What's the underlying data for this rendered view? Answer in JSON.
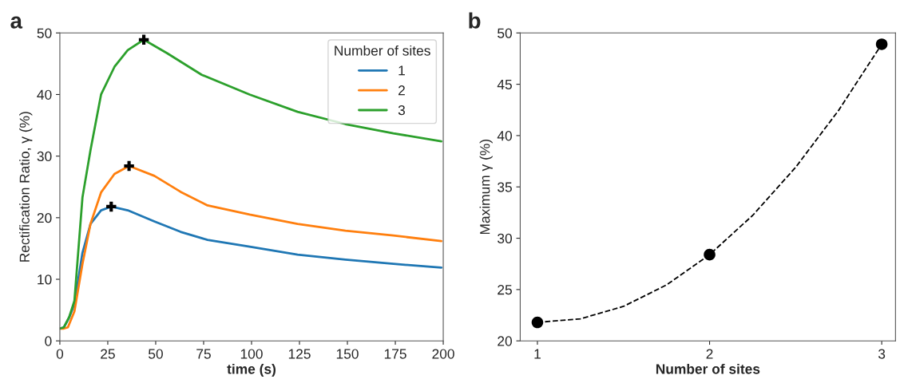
{
  "chart_data": [
    {
      "type": "line",
      "title": "a",
      "xlabel": "time (s)",
      "ylabel": "Rectification Ratio, γ (%)",
      "legend_title": "Number of sites",
      "legend": "top right",
      "xlim": [
        0,
        200
      ],
      "ylim": [
        0,
        50
      ],
      "xticks": [
        0,
        25,
        50,
        75,
        100,
        125,
        150,
        175,
        200
      ],
      "yticks": [
        0,
        10,
        20,
        30,
        40,
        50
      ],
      "grid": false,
      "series": [
        {
          "name": "1",
          "color": "#1f77b4",
          "x": [
            0,
            2.1,
            4.9,
            7.6,
            11.8,
            16,
            21.5,
            26.8,
            35.4,
            49.3,
            63,
            77,
            99,
            124,
            149,
            174,
            199
          ],
          "values": [
            2,
            2.2,
            3.8,
            6,
            14.3,
            19,
            21.2,
            21.8,
            21.2,
            19.4,
            17.7,
            16.4,
            15.3,
            14,
            13.2,
            12.5,
            11.9
          ]
        },
        {
          "name": "2",
          "color": "#ff7f0e",
          "x": [
            0,
            2.1,
            4.2,
            7.6,
            11.8,
            16,
            21.5,
            28.5,
            36.1,
            49.3,
            63,
            77,
            99,
            124,
            149,
            174,
            199
          ],
          "values": [
            2,
            2,
            2.2,
            4.8,
            12.5,
            19,
            24.1,
            27.1,
            28.4,
            26.8,
            24.2,
            22,
            20.5,
            19,
            17.9,
            17.1,
            16.2
          ]
        },
        {
          "name": "3",
          "color": "#2ca02c",
          "x": [
            0,
            2.1,
            4.9,
            7.6,
            11.8,
            16,
            21.5,
            28.5,
            35.4,
            43.8,
            56,
            74,
            99,
            124,
            149,
            174,
            199
          ],
          "values": [
            2,
            2.2,
            3.9,
            6.5,
            23.3,
            31,
            40,
            44.5,
            47.2,
            48.9,
            46.7,
            43.2,
            40,
            37.2,
            35.2,
            33.7,
            32.4
          ]
        },
        {
          "type": "scatter",
          "marker": "cross",
          "color": "#000000",
          "x": [
            26.8,
            36.1,
            43.8
          ],
          "values": [
            21.8,
            28.4,
            48.9
          ]
        }
      ]
    },
    {
      "type": "scatter",
      "title": "b",
      "xlabel": "Number of sites",
      "ylabel": "Maximum γ (%)",
      "xlim": [
        0.9,
        3.08
      ],
      "ylim": [
        20,
        50
      ],
      "xticks": [
        1,
        2,
        3
      ],
      "yticks": [
        20,
        25,
        30,
        35,
        40,
        45,
        50
      ],
      "grid": false,
      "series": [
        {
          "type": "line",
          "line_style": "dashed",
          "marker": "none",
          "color": "#000000",
          "x": [
            1,
            1.25,
            1.5,
            1.75,
            2,
            2.25,
            2.5,
            2.75,
            3
          ],
          "values": [
            21.8,
            22.15,
            23.36,
            25.45,
            28.4,
            32.22,
            36.91,
            42.47,
            48.9
          ]
        },
        {
          "type": "scatter",
          "marker": "circle",
          "color": "#000000",
          "x": [
            1,
            2,
            3
          ],
          "values": [
            21.8,
            28.4,
            48.9
          ]
        }
      ]
    }
  ]
}
